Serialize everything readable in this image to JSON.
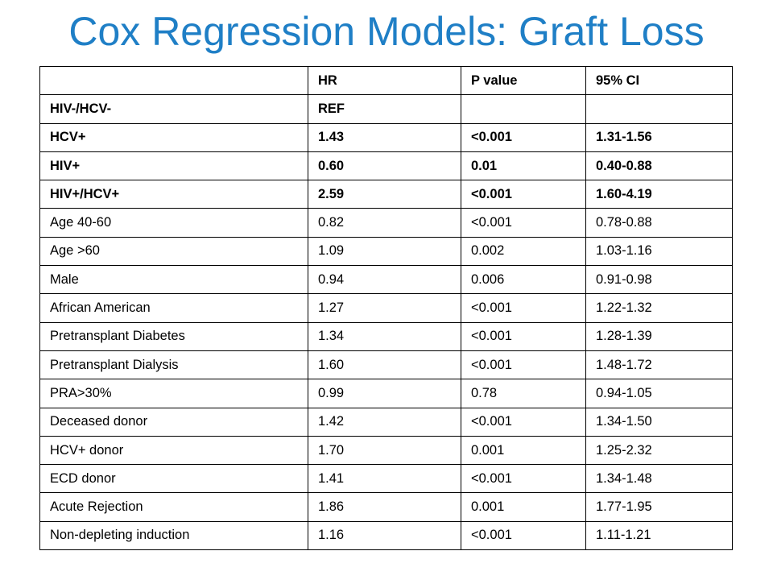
{
  "title": "Cox Regression Models: Graft Loss",
  "table": {
    "headers": [
      "",
      "HR",
      "P value",
      "95% CI"
    ],
    "rows": [
      {
        "label": "HIV-/HCV-",
        "hr": "REF",
        "p": "",
        "ci": "",
        "bold": true
      },
      {
        "label": "HCV+",
        "hr": "1.43",
        "p": "<0.001",
        "ci": "1.31-1.56",
        "bold": true
      },
      {
        "label": "HIV+",
        "hr": "0.60",
        "p": "0.01",
        "ci": "0.40-0.88",
        "bold": true
      },
      {
        "label": "HIV+/HCV+",
        "hr": "2.59",
        "p": "<0.001",
        "ci": "1.60-4.19",
        "bold": true
      },
      {
        "label": "Age 40-60",
        "hr": "0.82",
        "p": "<0.001",
        "ci": "0.78-0.88",
        "bold": false
      },
      {
        "label": "Age >60",
        "hr": "1.09",
        "p": "0.002",
        "ci": "1.03-1.16",
        "bold": false
      },
      {
        "label": "Male",
        "hr": "0.94",
        "p": "0.006",
        "ci": "0.91-0.98",
        "bold": false
      },
      {
        "label": "African American",
        "hr": "1.27",
        "p": "<0.001",
        "ci": "1.22-1.32",
        "bold": false
      },
      {
        "label": "Pretransplant Diabetes",
        "hr": "1.34",
        "p": "<0.001",
        "ci": "1.28-1.39",
        "bold": false
      },
      {
        "label": "Pretransplant Dialysis",
        "hr": "1.60",
        "p": "<0.001",
        "ci": "1.48-1.72",
        "bold": false
      },
      {
        "label": "PRA>30%",
        "hr": "0.99",
        "p": "0.78",
        "ci": "0.94-1.05",
        "bold": false
      },
      {
        "label": "Deceased donor",
        "hr": "1.42",
        "p": "<0.001",
        "ci": "1.34-1.50",
        "bold": false
      },
      {
        "label": "HCV+ donor",
        "hr": "1.70",
        "p": "0.001",
        "ci": "1.25-2.32",
        "bold": false
      },
      {
        "label": "ECD donor",
        "hr": "1.41",
        "p": "<0.001",
        "ci": "1.34-1.48",
        "bold": false
      },
      {
        "label": "Acute Rejection",
        "hr": "1.86",
        "p": "0.001",
        "ci": "1.77-1.95",
        "bold": false
      },
      {
        "label": "Non-depleting induction",
        "hr": "1.16",
        "p": "<0.001",
        "ci": "1.11-1.21",
        "bold": false
      }
    ]
  },
  "colors": {
    "title": "#1f7fc6",
    "text": "#000000",
    "border": "#000000",
    "background": "#ffffff"
  }
}
